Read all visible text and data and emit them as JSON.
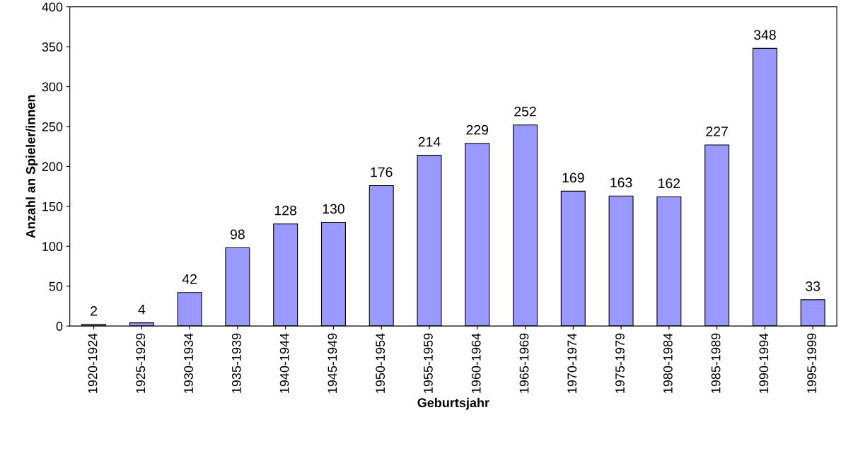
{
  "chart_data": {
    "type": "bar",
    "xlabel": "Geburtsjahr",
    "ylabel": "Anzahl an Spieler/innen",
    "categories": [
      "1920-1924",
      "1925-1929",
      "1930-1934",
      "1935-1939",
      "1940-1944",
      "1945-1949",
      "1950-1954",
      "1955-1959",
      "1960-1964",
      "1965-1969",
      "1970-1974",
      "1975-1979",
      "1980-1984",
      "1985-1989",
      "1990-1994",
      "1995-1999"
    ],
    "values": [
      2,
      4,
      42,
      98,
      128,
      130,
      176,
      214,
      229,
      252,
      169,
      163,
      162,
      227,
      348,
      33
    ],
    "color": "#9999ff",
    "ylim": [
      0,
      400
    ],
    "yticks": [
      0,
      50,
      100,
      150,
      200,
      250,
      300,
      350,
      400
    ],
    "grid": false,
    "data_labels": true
  }
}
